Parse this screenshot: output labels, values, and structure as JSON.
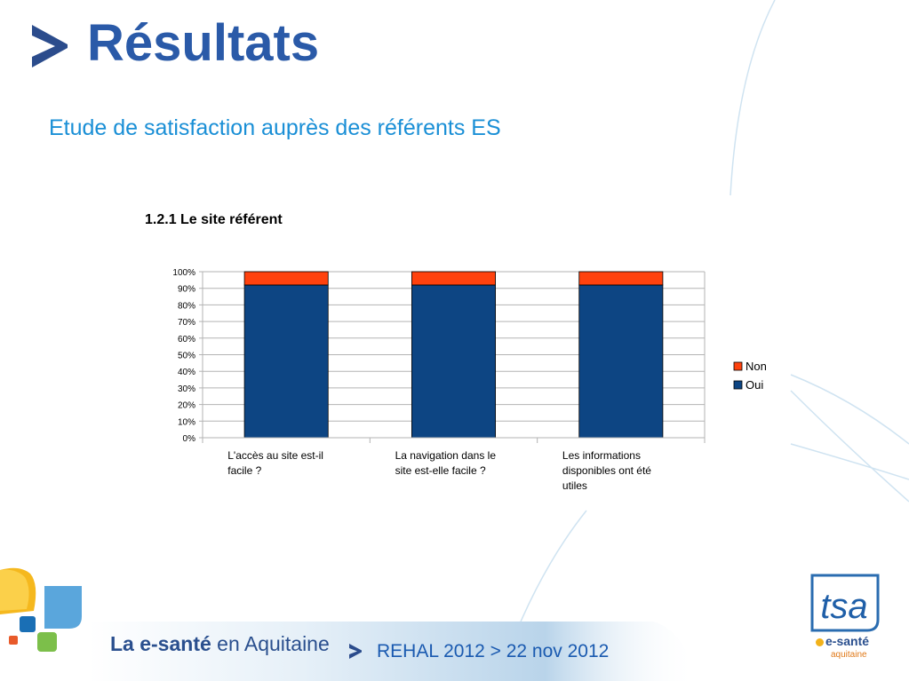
{
  "slide": {
    "title": "Résultats",
    "subtitle": "Etude de satisfaction auprès des  référents ES",
    "section_title": "1.2.1   Le site référent"
  },
  "footer": {
    "brand_bold": "La e-santé",
    "brand_rest": " en Aquitaine",
    "event": "REHAL 2012 > 22 nov 2012"
  },
  "logo_right": {
    "mark": "tsa",
    "line1": "e-santé",
    "line2": "aquitaine"
  },
  "colors": {
    "oui": "#0d4583",
    "non": "#ff420e",
    "title": "#2a5aa8",
    "subtitle": "#1a8fd6"
  },
  "chart_data": {
    "type": "bar",
    "stacked": true,
    "categories": [
      [
        "L'accès au site est-il",
        "facile ?"
      ],
      [
        "La navigation dans le",
        "site est-elle facile ?"
      ],
      [
        "Les informations",
        "disponibles ont été",
        "utiles"
      ]
    ],
    "series": [
      {
        "name": "Oui",
        "values": [
          92,
          92,
          92
        ],
        "color": "#0d4583"
      },
      {
        "name": "Non",
        "values": [
          8,
          8,
          8
        ],
        "color": "#ff420e"
      }
    ],
    "yticks": [
      "0%",
      "10%",
      "20%",
      "30%",
      "40%",
      "50%",
      "60%",
      "70%",
      "80%",
      "90%",
      "100%"
    ],
    "ylim": [
      0,
      100
    ],
    "legend": [
      "Non",
      "Oui"
    ],
    "legend_position": "right",
    "grid": true
  }
}
